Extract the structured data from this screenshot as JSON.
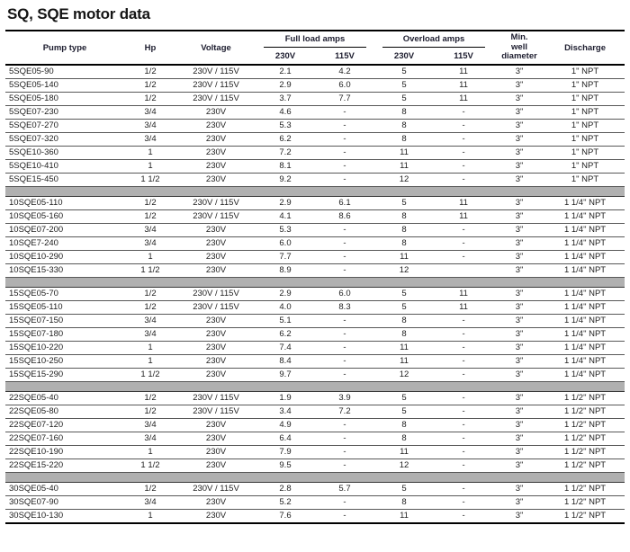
{
  "title": "SQ, SQE motor data",
  "table": {
    "header": {
      "pump_type": "Pump type",
      "hp": "Hp",
      "voltage": "Voltage",
      "full_load_amps": "Full load amps",
      "overload_amps": "Overload amps",
      "volt_230": "230V",
      "volt_115": "115V",
      "min_well_diameter": "Min.\nwell\ndiameter",
      "discharge": "Discharge"
    },
    "colors": {
      "separator_bar": "#b0b0b0",
      "row_line": "#585858",
      "header_line": "#000000"
    },
    "column_keys": [
      "pump_type",
      "hp",
      "voltage",
      "full_load_230v",
      "full_load_115v",
      "overload_230v",
      "overload_115v",
      "min_well_diameter",
      "discharge"
    ],
    "groups": [
      {
        "rows": [
          [
            "5SQE05-90",
            "1/2",
            "230V / 115V",
            "2.1",
            "4.2",
            "5",
            "11",
            "3\"",
            "1\" NPT"
          ],
          [
            "5SQE05-140",
            "1/2",
            "230V / 115V",
            "2.9",
            "6.0",
            "5",
            "11",
            "3\"",
            "1\" NPT"
          ],
          [
            "5SQE05-180",
            "1/2",
            "230V / 115V",
            "3.7",
            "7.7",
            "5",
            "11",
            "3\"",
            "1\" NPT"
          ],
          [
            "5SQE07-230",
            "3/4",
            "230V",
            "4.6",
            "-",
            "8",
            "-",
            "3\"",
            "1\" NPT"
          ],
          [
            "5SQE07-270",
            "3/4",
            "230V",
            "5.3",
            "-",
            "8",
            "-",
            "3\"",
            "1\" NPT"
          ],
          [
            "5SQE07-320",
            "3/4",
            "230V",
            "6.2",
            "-",
            "8",
            "-",
            "3\"",
            "1\" NPT"
          ],
          [
            "5SQE10-360",
            "1",
            "230V",
            "7.2",
            "-",
            "11",
            "-",
            "3\"",
            "1\" NPT"
          ],
          [
            "5SQE10-410",
            "1",
            "230V",
            "8.1",
            "-",
            "11",
            "-",
            "3\"",
            "1\" NPT"
          ],
          [
            "5SQE15-450",
            "1 1/2",
            "230V",
            "9.2",
            "-",
            "12",
            "-",
            "3\"",
            "1\" NPT"
          ]
        ]
      },
      {
        "rows": [
          [
            "10SQE05-110",
            "1/2",
            "230V / 115V",
            "2.9",
            "6.1",
            "5",
            "11",
            "3\"",
            "1 1/4\" NPT"
          ],
          [
            "10SQE05-160",
            "1/2",
            "230V / 115V",
            "4.1",
            "8.6",
            "8",
            "11",
            "3\"",
            "1 1/4\" NPT"
          ],
          [
            "10SQE07-200",
            "3/4",
            "230V",
            "5.3",
            "-",
            "8",
            "-",
            "3\"",
            "1 1/4\" NPT"
          ],
          [
            "10SQE7-240",
            "3/4",
            "230V",
            "6.0",
            "-",
            "8",
            "-",
            "3\"",
            "1 1/4\" NPT"
          ],
          [
            "10SQE10-290",
            "1",
            "230V",
            "7.7",
            "-",
            "11",
            "-",
            "3\"",
            "1 1/4\" NPT"
          ],
          [
            "10SQE15-330",
            "1 1/2",
            "230V",
            "8.9",
            "-",
            "12",
            "",
            "3\"",
            "1 1/4\" NPT"
          ]
        ]
      },
      {
        "rows": [
          [
            "15SQE05-70",
            "1/2",
            "230V / 115V",
            "2.9",
            "6.0",
            "5",
            "11",
            "3\"",
            "1 1/4\" NPT"
          ],
          [
            "15SQE05-110",
            "1/2",
            "230V / 115V",
            "4.0",
            "8.3",
            "5",
            "11",
            "3\"",
            "1 1/4\" NPT"
          ],
          [
            "15SQE07-150",
            "3/4",
            "230V",
            "5.1",
            "-",
            "8",
            "-",
            "3\"",
            "1 1/4\" NPT"
          ],
          [
            "15SQE07-180",
            "3/4",
            "230V",
            "6.2",
            "-",
            "8",
            "-",
            "3\"",
            "1 1/4\" NPT"
          ],
          [
            "15SQE10-220",
            "1",
            "230V",
            "7.4",
            "-",
            "11",
            "-",
            "3\"",
            "1 1/4\" NPT"
          ],
          [
            "15SQE10-250",
            "1",
            "230V",
            "8.4",
            "-",
            "11",
            "-",
            "3\"",
            "1 1/4\" NPT"
          ],
          [
            "15SQE15-290",
            "1 1/2",
            "230V",
            "9.7",
            "-",
            "12",
            "-",
            "3\"",
            "1 1/4\" NPT"
          ]
        ]
      },
      {
        "rows": [
          [
            "22SQE05-40",
            "1/2",
            "230V / 115V",
            "1.9",
            "3.9",
            "5",
            "-",
            "3\"",
            "1 1/2\" NPT"
          ],
          [
            "22SQE05-80",
            "1/2",
            "230V / 115V",
            "3.4",
            "7.2",
            "5",
            "-",
            "3\"",
            "1 1/2\" NPT"
          ],
          [
            "22SQE07-120",
            "3/4",
            "230V",
            "4.9",
            "-",
            "8",
            "-",
            "3\"",
            "1 1/2\" NPT"
          ],
          [
            "22SQE07-160",
            "3/4",
            "230V",
            "6.4",
            "-",
            "8",
            "-",
            "3\"",
            "1 1/2\" NPT"
          ],
          [
            "22SQE10-190",
            "1",
            "230V",
            "7.9",
            "-",
            "11",
            "-",
            "3\"",
            "1 1/2\" NPT"
          ],
          [
            "22SQE15-220",
            "1 1/2",
            "230V",
            "9.5",
            "-",
            "12",
            "-",
            "3\"",
            "1 1/2\" NPT"
          ]
        ]
      },
      {
        "rows": [
          [
            "30SQE05-40",
            "1/2",
            "230V / 115V",
            "2.8",
            "5.7",
            "5",
            "-",
            "3\"",
            "1 1/2\" NPT"
          ],
          [
            "30SQE07-90",
            "3/4",
            "230V",
            "5.2",
            "-",
            "8",
            "-",
            "3\"",
            "1 1/2\" NPT"
          ],
          [
            "30SQE10-130",
            "1",
            "230V",
            "7.6",
            "-",
            "11",
            "-",
            "3\"",
            "1 1/2\" NPT"
          ]
        ]
      }
    ]
  }
}
